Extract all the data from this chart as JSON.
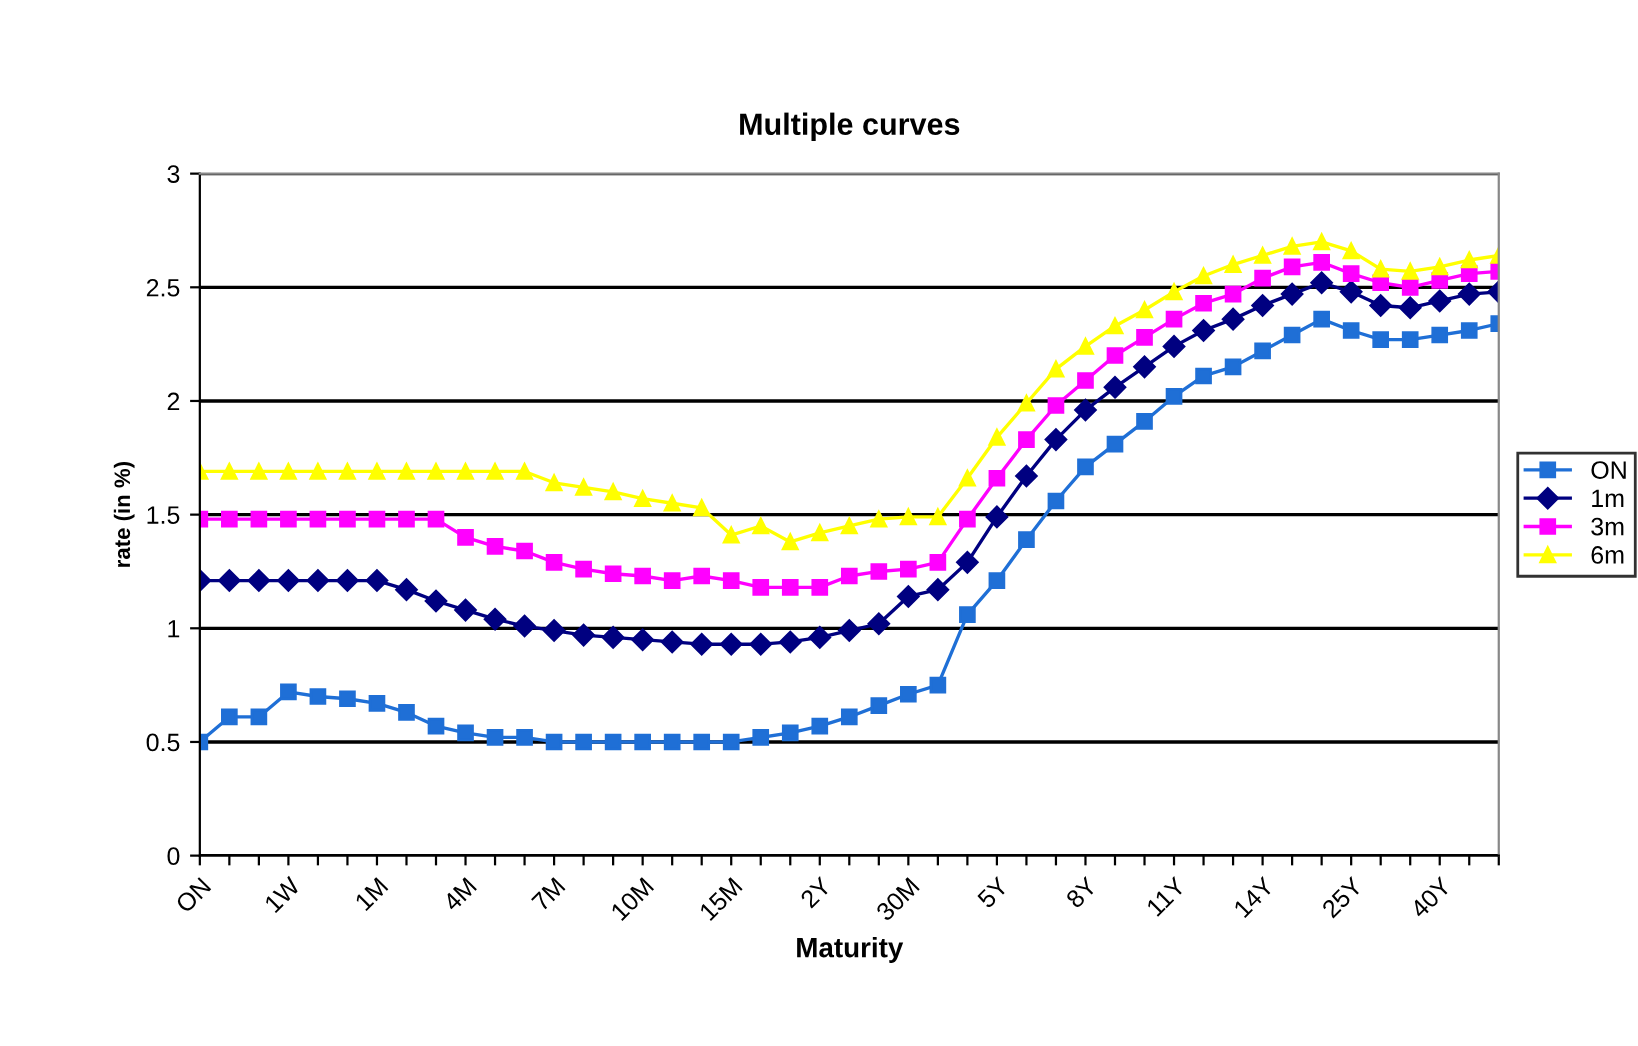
{
  "chart_data": {
    "type": "line",
    "title": "Multiple curves",
    "xlabel": "Maturity",
    "ylabel": "rate (in %)",
    "categories": [
      "ON",
      null,
      null,
      "1W",
      null,
      null,
      "1M",
      null,
      null,
      "4M",
      null,
      null,
      "7M",
      null,
      null,
      "10M",
      null,
      null,
      "15M",
      null,
      null,
      "2Y",
      null,
      null,
      "30M",
      null,
      null,
      "5Y",
      null,
      null,
      "8Y",
      null,
      null,
      "11Y",
      null,
      null,
      "14Y",
      null,
      null,
      "25Y",
      null,
      null,
      "40Y",
      null,
      null
    ],
    "series": [
      {
        "name": "ON",
        "color": "#1f6fd6",
        "marker": "square",
        "values": [
          0.5,
          0.61,
          0.61,
          0.72,
          0.7,
          0.69,
          0.67,
          0.63,
          0.57,
          0.54,
          0.52,
          0.52,
          0.5,
          0.5,
          0.5,
          0.5,
          0.5,
          0.5,
          0.5,
          0.52,
          0.54,
          0.57,
          0.61,
          0.66,
          0.71,
          0.75,
          1.06,
          1.21,
          1.39,
          1.56,
          1.71,
          1.81,
          1.91,
          2.02,
          2.11,
          2.15,
          2.22,
          2.29,
          2.36,
          2.31,
          2.27,
          2.27,
          2.29,
          2.31,
          2.34
        ]
      },
      {
        "name": "1m",
        "color": "#000080",
        "marker": "diamond",
        "values": [
          1.21,
          1.21,
          1.21,
          1.21,
          1.21,
          1.21,
          1.21,
          1.17,
          1.12,
          1.08,
          1.04,
          1.01,
          0.99,
          0.97,
          0.96,
          0.95,
          0.94,
          0.93,
          0.93,
          0.93,
          0.94,
          0.96,
          0.99,
          1.02,
          1.14,
          1.17,
          1.29,
          1.49,
          1.67,
          1.83,
          1.96,
          2.06,
          2.15,
          2.24,
          2.31,
          2.36,
          2.42,
          2.47,
          2.52,
          2.48,
          2.42,
          2.41,
          2.44,
          2.47,
          2.48
        ]
      },
      {
        "name": "3m",
        "color": "#ff00ff",
        "marker": "square",
        "values": [
          1.48,
          1.48,
          1.48,
          1.48,
          1.48,
          1.48,
          1.48,
          1.48,
          1.48,
          1.4,
          1.36,
          1.34,
          1.29,
          1.26,
          1.24,
          1.23,
          1.21,
          1.23,
          1.21,
          1.18,
          1.18,
          1.18,
          1.23,
          1.25,
          1.26,
          1.29,
          1.48,
          1.66,
          1.83,
          1.98,
          2.09,
          2.2,
          2.28,
          2.36,
          2.43,
          2.47,
          2.54,
          2.59,
          2.61,
          2.56,
          2.52,
          2.5,
          2.53,
          2.56,
          2.57
        ]
      },
      {
        "name": "6m",
        "color": "#ffff00",
        "marker": "triangle",
        "values": [
          1.69,
          1.69,
          1.69,
          1.69,
          1.69,
          1.69,
          1.69,
          1.69,
          1.69,
          1.69,
          1.69,
          1.69,
          1.64,
          1.62,
          1.6,
          1.57,
          1.55,
          1.53,
          1.41,
          1.45,
          1.38,
          1.42,
          1.45,
          1.48,
          1.49,
          1.49,
          1.66,
          1.84,
          1.99,
          2.14,
          2.24,
          2.33,
          2.4,
          2.48,
          2.55,
          2.6,
          2.64,
          2.68,
          2.7,
          2.66,
          2.58,
          2.57,
          2.59,
          2.62,
          2.64
        ]
      }
    ],
    "ylim": [
      0,
      3
    ],
    "yticks": [
      0,
      0.5,
      1,
      1.5,
      2,
      2.5,
      3
    ],
    "grid": "y",
    "legend": "right",
    "line_style": "solid"
  }
}
